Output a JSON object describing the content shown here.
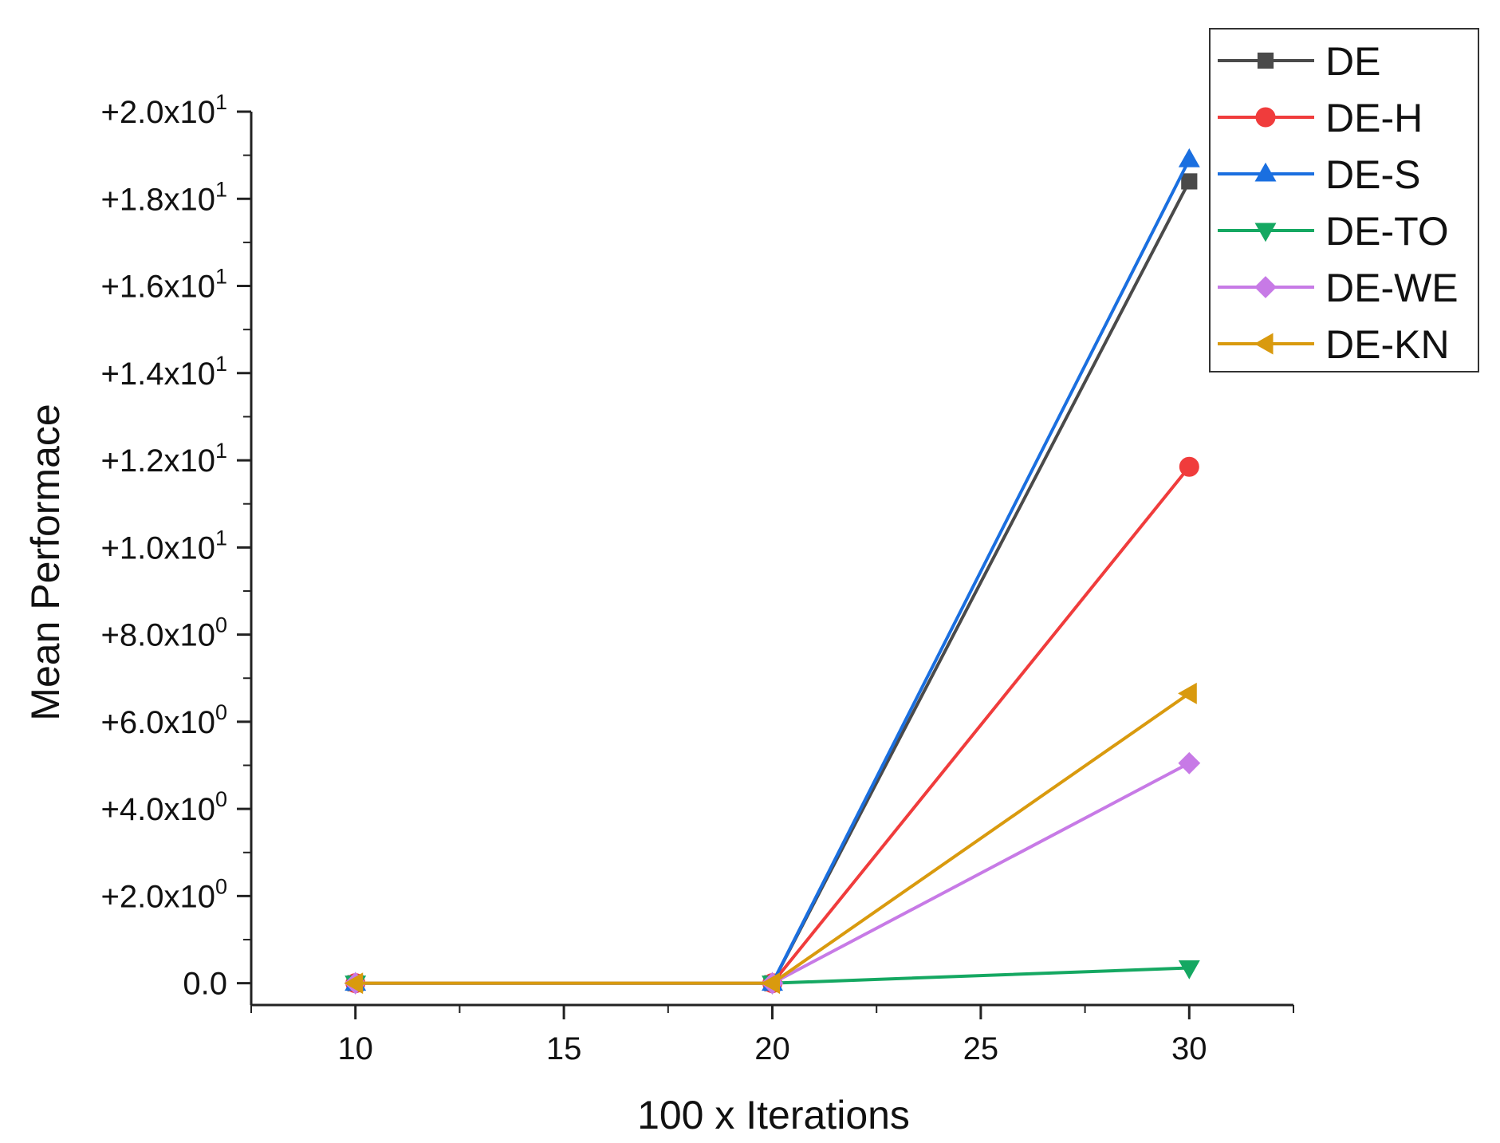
{
  "chart_data": {
    "type": "line",
    "title": "",
    "xlabel": "100 x Iterations",
    "ylabel": "Mean Performace",
    "x": [
      10,
      20,
      30
    ],
    "xlim": [
      7.5,
      32.5
    ],
    "ylim": [
      -0.5,
      20.0
    ],
    "x_ticks": [
      {
        "value": 10,
        "label": "10"
      },
      {
        "value": 15,
        "label": "15"
      },
      {
        "value": 20,
        "label": "20"
      },
      {
        "value": 25,
        "label": "25"
      },
      {
        "value": 30,
        "label": "30"
      }
    ],
    "y_ticks": [
      {
        "value": 0,
        "label": "0.0",
        "mantissa": "",
        "exp": ""
      },
      {
        "value": 2,
        "label": "+2.0x10^0",
        "mantissa": "+2.0x10",
        "exp": "0"
      },
      {
        "value": 4,
        "label": "+4.0x10^0",
        "mantissa": "+4.0x10",
        "exp": "0"
      },
      {
        "value": 6,
        "label": "+6.0x10^0",
        "mantissa": "+6.0x10",
        "exp": "0"
      },
      {
        "value": 8,
        "label": "+8.0x10^0",
        "mantissa": "+8.0x10",
        "exp": "0"
      },
      {
        "value": 10,
        "label": "+1.0x10^1",
        "mantissa": "+1.0x10",
        "exp": "1"
      },
      {
        "value": 12,
        "label": "+1.2x10^1",
        "mantissa": "+1.2x10",
        "exp": "1"
      },
      {
        "value": 14,
        "label": "+1.4x10^1",
        "mantissa": "+1.4x10",
        "exp": "1"
      },
      {
        "value": 16,
        "label": "+1.6x10^1",
        "mantissa": "+1.6x10",
        "exp": "1"
      },
      {
        "value": 18,
        "label": "+1.8x10^1",
        "mantissa": "+1.8x10",
        "exp": "1"
      },
      {
        "value": 20,
        "label": "+2.0x10^1",
        "mantissa": "+2.0x10",
        "exp": "1"
      }
    ],
    "legend_position": "top-right",
    "grid": false,
    "series": [
      {
        "name": "DE",
        "color": "#4a4a4a",
        "marker": "square",
        "values": [
          0,
          0,
          18.4
        ]
      },
      {
        "name": "DE-H",
        "color": "#f03c3c",
        "marker": "circle",
        "values": [
          0,
          0,
          11.85
        ]
      },
      {
        "name": "DE-S",
        "color": "#1a6fe0",
        "marker": "triangle-up",
        "values": [
          0,
          0,
          18.9
        ]
      },
      {
        "name": "DE-TO",
        "color": "#15a862",
        "marker": "triangle-down",
        "values": [
          0,
          0,
          0.35
        ]
      },
      {
        "name": "DE-WE",
        "color": "#c77ae6",
        "marker": "diamond",
        "values": [
          0,
          0,
          5.05
        ]
      },
      {
        "name": "DE-KN",
        "color": "#d99a0e",
        "marker": "triangle-left",
        "values": [
          0,
          0,
          6.65
        ]
      }
    ]
  }
}
